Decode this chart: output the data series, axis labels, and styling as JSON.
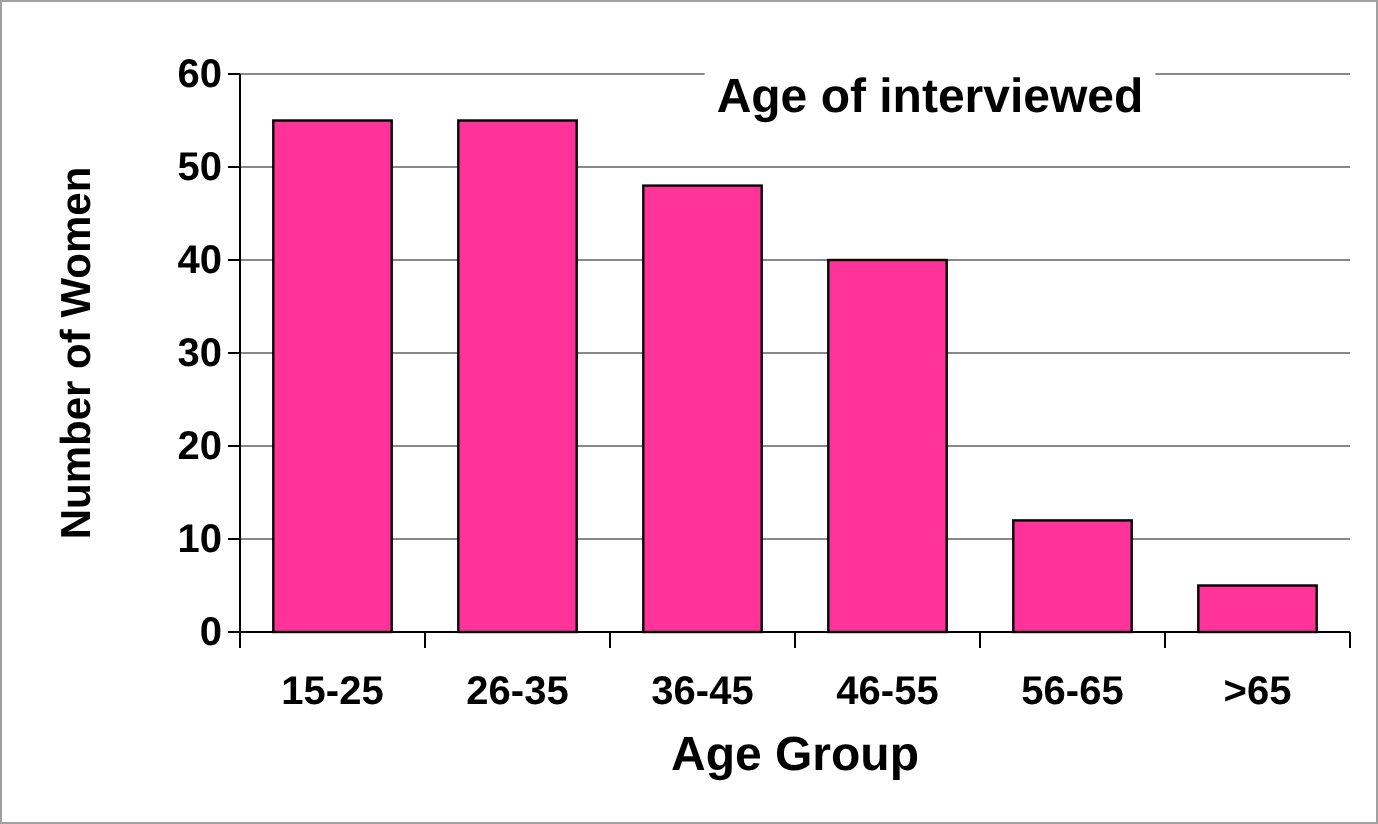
{
  "chart_data": {
    "type": "bar",
    "title": "Age of interviewed",
    "xlabel": "Age Group",
    "ylabel": "Number of Women",
    "categories": [
      "15-25",
      "26-35",
      "36-45",
      "46-55",
      "56-65",
      ">65"
    ],
    "values": [
      55,
      55,
      48,
      40,
      12,
      5
    ],
    "color": "#ff3399",
    "ylim": [
      0,
      60
    ],
    "yticks": [
      0,
      10,
      20,
      30,
      40,
      50,
      60
    ],
    "grid": "y"
  }
}
